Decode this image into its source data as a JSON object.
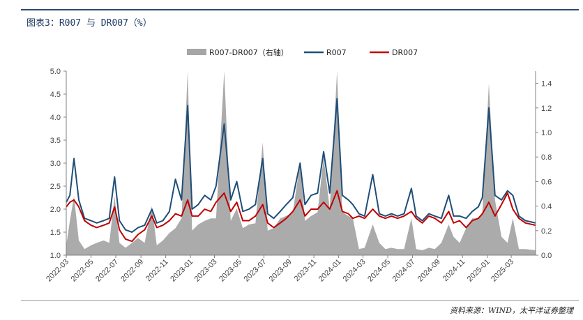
{
  "header": {
    "title": "图表3：R007 与 DR007（%）"
  },
  "footer": {
    "source": "资料来源：WIND，太平洋证券整理"
  },
  "chart_data": {
    "type": "line",
    "title": "图表3：R007 与 DR007（%）",
    "legend_position": "top-center",
    "grid": false,
    "x_tick_labels": [
      "2022-03",
      "2022-05",
      "2022-07",
      "2022-09",
      "2022-11",
      "2023-01",
      "2023-03",
      "2023-05",
      "2023-07",
      "2023-09",
      "2023-11",
      "2024-01",
      "2024-03",
      "2024-05",
      "2024-07",
      "2024-09",
      "2024-11",
      "2025-01",
      "2025-03"
    ],
    "x_range": [
      "2022-03-01",
      "2025-04-30"
    ],
    "y_left": {
      "min": 1.0,
      "max": 5.0,
      "ticks": [
        "1.0",
        "1.5",
        "2.0",
        "2.5",
        "3.0",
        "3.5",
        "4.0",
        "4.5",
        "5.0"
      ]
    },
    "y_right": {
      "min": 0.0,
      "max": 1.5,
      "ticks": [
        "0.0",
        "0.2",
        "0.4",
        "0.6",
        "0.8",
        "1.0",
        "1.2",
        "1.4"
      ]
    },
    "series": [
      {
        "name": "R007-DR007（右轴）",
        "type": "area",
        "axis": "right",
        "color": "#a6a6a6",
        "points": [
          [
            "2022-03-01",
            0.08
          ],
          [
            "2022-03-10",
            0.28
          ],
          [
            "2022-03-20",
            0.48
          ],
          [
            "2022-04-01",
            0.12
          ],
          [
            "2022-04-15",
            0.05
          ],
          [
            "2022-05-01",
            0.08
          ],
          [
            "2022-05-15",
            0.1
          ],
          [
            "2022-06-01",
            0.12
          ],
          [
            "2022-06-15",
            0.1
          ],
          [
            "2022-06-28",
            0.48
          ],
          [
            "2022-07-10",
            0.1
          ],
          [
            "2022-07-25",
            0.06
          ],
          [
            "2022-08-10",
            0.1
          ],
          [
            "2022-08-25",
            0.14
          ],
          [
            "2022-09-10",
            0.1
          ],
          [
            "2022-09-28",
            0.4
          ],
          [
            "2022-10-10",
            0.08
          ],
          [
            "2022-10-25",
            0.12
          ],
          [
            "2022-11-10",
            0.18
          ],
          [
            "2022-11-25",
            0.22
          ],
          [
            "2022-12-10",
            0.3
          ],
          [
            "2022-12-25",
            1.5
          ],
          [
            "2023-01-05",
            0.2
          ],
          [
            "2023-01-20",
            0.25
          ],
          [
            "2023-02-05",
            0.28
          ],
          [
            "2023-02-20",
            0.3
          ],
          [
            "2023-03-05",
            0.3
          ],
          [
            "2023-03-25",
            1.5
          ],
          [
            "2023-04-10",
            0.28
          ],
          [
            "2023-04-25",
            0.38
          ],
          [
            "2023-05-10",
            0.22
          ],
          [
            "2023-05-25",
            0.25
          ],
          [
            "2023-06-10",
            0.26
          ],
          [
            "2023-06-28",
            0.92
          ],
          [
            "2023-07-10",
            0.2
          ],
          [
            "2023-07-25",
            0.22
          ],
          [
            "2023-08-10",
            0.3
          ],
          [
            "2023-08-25",
            0.32
          ],
          [
            "2023-09-10",
            0.35
          ],
          [
            "2023-09-28",
            0.75
          ],
          [
            "2023-10-10",
            0.28
          ],
          [
            "2023-10-25",
            0.32
          ],
          [
            "2023-11-10",
            0.35
          ],
          [
            "2023-11-25",
            0.8
          ],
          [
            "2023-12-10",
            0.38
          ],
          [
            "2023-12-28",
            1.5
          ],
          [
            "2024-01-10",
            0.35
          ],
          [
            "2024-01-25",
            0.32
          ],
          [
            "2024-02-05",
            0.3
          ],
          [
            "2024-02-20",
            0.05
          ],
          [
            "2024-03-05",
            0.06
          ],
          [
            "2024-03-25",
            0.25
          ],
          [
            "2024-04-10",
            0.1
          ],
          [
            "2024-04-25",
            0.05
          ],
          [
            "2024-05-10",
            0.06
          ],
          [
            "2024-05-25",
            0.05
          ],
          [
            "2024-06-10",
            0.05
          ],
          [
            "2024-06-28",
            0.3
          ],
          [
            "2024-07-10",
            0.05
          ],
          [
            "2024-07-25",
            0.04
          ],
          [
            "2024-08-10",
            0.06
          ],
          [
            "2024-08-25",
            0.05
          ],
          [
            "2024-09-10",
            0.1
          ],
          [
            "2024-09-28",
            0.25
          ],
          [
            "2024-10-10",
            0.15
          ],
          [
            "2024-10-25",
            0.1
          ],
          [
            "2024-11-10",
            0.22
          ],
          [
            "2024-11-25",
            0.3
          ],
          [
            "2024-12-10",
            0.3
          ],
          [
            "2024-12-20",
            0.35
          ],
          [
            "2025-01-05",
            1.4
          ],
          [
            "2025-01-20",
            0.45
          ],
          [
            "2025-02-05",
            0.15
          ],
          [
            "2025-02-20",
            0.1
          ],
          [
            "2025-03-05",
            0.3
          ],
          [
            "2025-03-20",
            0.05
          ],
          [
            "2025-04-05",
            0.05
          ],
          [
            "2025-04-30",
            0.04
          ]
        ]
      },
      {
        "name": "R007",
        "type": "line",
        "axis": "left",
        "color": "#1f4e79",
        "points": [
          [
            "2022-03-01",
            2.15
          ],
          [
            "2022-03-10",
            2.3
          ],
          [
            "2022-03-20",
            3.1
          ],
          [
            "2022-04-01",
            2.2
          ],
          [
            "2022-04-15",
            1.8
          ],
          [
            "2022-05-01",
            1.75
          ],
          [
            "2022-05-15",
            1.7
          ],
          [
            "2022-06-01",
            1.75
          ],
          [
            "2022-06-15",
            1.8
          ],
          [
            "2022-06-28",
            2.7
          ],
          [
            "2022-07-10",
            1.75
          ],
          [
            "2022-07-25",
            1.55
          ],
          [
            "2022-08-10",
            1.5
          ],
          [
            "2022-08-25",
            1.6
          ],
          [
            "2022-09-10",
            1.65
          ],
          [
            "2022-09-28",
            2.0
          ],
          [
            "2022-10-10",
            1.7
          ],
          [
            "2022-10-25",
            1.75
          ],
          [
            "2022-11-10",
            1.95
          ],
          [
            "2022-11-25",
            2.65
          ],
          [
            "2022-12-10",
            2.2
          ],
          [
            "2022-12-25",
            4.25
          ],
          [
            "2023-01-05",
            2.0
          ],
          [
            "2023-01-20",
            2.1
          ],
          [
            "2023-02-05",
            2.3
          ],
          [
            "2023-02-20",
            2.2
          ],
          [
            "2023-03-05",
            2.5
          ],
          [
            "2023-03-25",
            3.85
          ],
          [
            "2023-04-10",
            2.2
          ],
          [
            "2023-04-25",
            2.6
          ],
          [
            "2023-05-10",
            1.95
          ],
          [
            "2023-05-25",
            2.0
          ],
          [
            "2023-06-10",
            2.1
          ],
          [
            "2023-06-28",
            3.1
          ],
          [
            "2023-07-10",
            1.9
          ],
          [
            "2023-07-25",
            1.8
          ],
          [
            "2023-08-10",
            1.95
          ],
          [
            "2023-08-25",
            2.1
          ],
          [
            "2023-09-10",
            2.25
          ],
          [
            "2023-09-28",
            3.0
          ],
          [
            "2023-10-10",
            2.1
          ],
          [
            "2023-10-25",
            2.3
          ],
          [
            "2023-11-10",
            2.35
          ],
          [
            "2023-11-25",
            3.25
          ],
          [
            "2023-12-10",
            2.35
          ],
          [
            "2023-12-28",
            4.4
          ],
          [
            "2024-01-10",
            2.3
          ],
          [
            "2024-01-25",
            2.2
          ],
          [
            "2024-02-05",
            2.1
          ],
          [
            "2024-02-20",
            1.9
          ],
          [
            "2024-03-05",
            1.85
          ],
          [
            "2024-03-25",
            2.75
          ],
          [
            "2024-04-10",
            1.9
          ],
          [
            "2024-04-25",
            1.85
          ],
          [
            "2024-05-10",
            1.9
          ],
          [
            "2024-05-25",
            1.85
          ],
          [
            "2024-06-10",
            1.9
          ],
          [
            "2024-06-28",
            2.45
          ],
          [
            "2024-07-10",
            1.85
          ],
          [
            "2024-07-25",
            1.75
          ],
          [
            "2024-08-10",
            1.9
          ],
          [
            "2024-08-25",
            1.85
          ],
          [
            "2024-09-10",
            1.8
          ],
          [
            "2024-09-28",
            2.3
          ],
          [
            "2024-10-10",
            1.85
          ],
          [
            "2024-10-25",
            1.85
          ],
          [
            "2024-11-10",
            1.8
          ],
          [
            "2024-11-25",
            1.95
          ],
          [
            "2024-12-10",
            2.05
          ],
          [
            "2024-12-20",
            2.25
          ],
          [
            "2025-01-05",
            4.2
          ],
          [
            "2025-01-20",
            2.3
          ],
          [
            "2025-02-05",
            2.2
          ],
          [
            "2025-02-20",
            2.4
          ],
          [
            "2025-03-05",
            2.3
          ],
          [
            "2025-03-20",
            1.85
          ],
          [
            "2025-04-05",
            1.75
          ],
          [
            "2025-04-30",
            1.7
          ]
        ]
      },
      {
        "name": "DR007",
        "type": "line",
        "axis": "left",
        "color": "#c00000",
        "points": [
          [
            "2022-03-01",
            2.05
          ],
          [
            "2022-03-10",
            2.15
          ],
          [
            "2022-03-20",
            2.2
          ],
          [
            "2022-04-01",
            2.05
          ],
          [
            "2022-04-15",
            1.75
          ],
          [
            "2022-05-01",
            1.65
          ],
          [
            "2022-05-15",
            1.6
          ],
          [
            "2022-06-01",
            1.65
          ],
          [
            "2022-06-15",
            1.7
          ],
          [
            "2022-06-28",
            2.05
          ],
          [
            "2022-07-10",
            1.55
          ],
          [
            "2022-07-25",
            1.35
          ],
          [
            "2022-08-10",
            1.3
          ],
          [
            "2022-08-25",
            1.45
          ],
          [
            "2022-09-10",
            1.55
          ],
          [
            "2022-09-28",
            1.85
          ],
          [
            "2022-10-10",
            1.6
          ],
          [
            "2022-10-25",
            1.65
          ],
          [
            "2022-11-10",
            1.75
          ],
          [
            "2022-11-25",
            1.9
          ],
          [
            "2022-12-10",
            1.85
          ],
          [
            "2022-12-25",
            2.2
          ],
          [
            "2023-01-05",
            1.85
          ],
          [
            "2023-01-20",
            1.85
          ],
          [
            "2023-02-05",
            2.0
          ],
          [
            "2023-02-20",
            1.95
          ],
          [
            "2023-03-05",
            2.15
          ],
          [
            "2023-03-25",
            2.35
          ],
          [
            "2023-04-10",
            1.95
          ],
          [
            "2023-04-25",
            2.15
          ],
          [
            "2023-05-10",
            1.75
          ],
          [
            "2023-05-25",
            1.75
          ],
          [
            "2023-06-10",
            1.85
          ],
          [
            "2023-06-28",
            2.1
          ],
          [
            "2023-07-10",
            1.7
          ],
          [
            "2023-07-25",
            1.6
          ],
          [
            "2023-08-10",
            1.7
          ],
          [
            "2023-08-25",
            1.8
          ],
          [
            "2023-09-10",
            1.95
          ],
          [
            "2023-09-28",
            2.2
          ],
          [
            "2023-10-10",
            1.85
          ],
          [
            "2023-10-25",
            2.0
          ],
          [
            "2023-11-10",
            2.0
          ],
          [
            "2023-11-25",
            2.15
          ],
          [
            "2023-12-10",
            2.0
          ],
          [
            "2023-12-28",
            2.4
          ],
          [
            "2024-01-10",
            1.95
          ],
          [
            "2024-01-25",
            1.9
          ],
          [
            "2024-02-05",
            1.8
          ],
          [
            "2024-02-20",
            1.85
          ],
          [
            "2024-03-05",
            1.8
          ],
          [
            "2024-03-25",
            2.0
          ],
          [
            "2024-04-10",
            1.85
          ],
          [
            "2024-04-25",
            1.8
          ],
          [
            "2024-05-10",
            1.85
          ],
          [
            "2024-05-25",
            1.8
          ],
          [
            "2024-06-10",
            1.85
          ],
          [
            "2024-06-28",
            1.95
          ],
          [
            "2024-07-10",
            1.8
          ],
          [
            "2024-07-25",
            1.7
          ],
          [
            "2024-08-10",
            1.85
          ],
          [
            "2024-08-25",
            1.8
          ],
          [
            "2024-09-10",
            1.7
          ],
          [
            "2024-09-28",
            1.95
          ],
          [
            "2024-10-10",
            1.7
          ],
          [
            "2024-10-25",
            1.75
          ],
          [
            "2024-11-10",
            1.6
          ],
          [
            "2024-11-25",
            1.75
          ],
          [
            "2024-12-10",
            1.8
          ],
          [
            "2024-12-20",
            1.9
          ],
          [
            "2025-01-05",
            2.15
          ],
          [
            "2025-01-20",
            1.85
          ],
          [
            "2025-02-05",
            2.1
          ],
          [
            "2025-02-20",
            2.35
          ],
          [
            "2025-03-05",
            2.0
          ],
          [
            "2025-03-20",
            1.8
          ],
          [
            "2025-04-05",
            1.7
          ],
          [
            "2025-04-30",
            1.65
          ]
        ]
      }
    ]
  }
}
